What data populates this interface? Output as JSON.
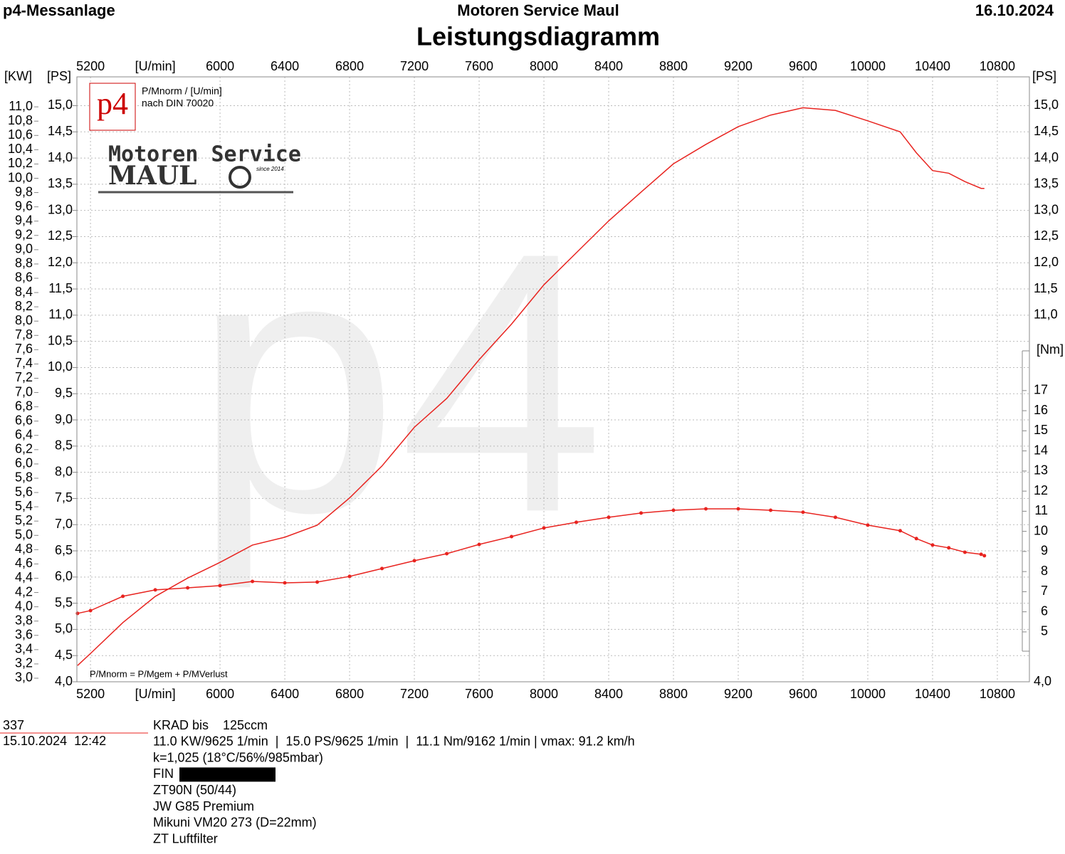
{
  "header": {
    "left": "p4-Messanlage",
    "center": "Motoren Service Maul",
    "right": "16.10.2024"
  },
  "chart_data": {
    "type": "line",
    "title": "Leistungsdiagramm",
    "x_unit": "[U/min]",
    "y_unit": "[PS]",
    "y2_unit": "[KW]",
    "y3_unit": "[Nm]",
    "legend_text": [
      "P/Mnorm / [U/min]",
      "nach DIN 70020"
    ],
    "note": "P/Mnorm = P/Mgem + P/MVerlust",
    "watermark": "p4",
    "logo": {
      "badge": "p4",
      "name": "Motoren Service",
      "brand": "MAUL",
      "since": "since 2014"
    },
    "grid": true,
    "xlim": [
      5116,
      10998
    ],
    "xticks": [
      5200,
      6000,
      6400,
      6800,
      7200,
      7600,
      8000,
      8400,
      8800,
      9200,
      9600,
      10000,
      10400,
      10800
    ],
    "ylim": [
      4.0,
      15.55
    ],
    "yticks": [
      {
        "value": 4,
        "label": "4,0"
      },
      {
        "value": 4.5,
        "label": "4,5"
      },
      {
        "value": 5,
        "label": "5,0"
      },
      {
        "value": 5.5,
        "label": "5,5"
      },
      {
        "value": 6,
        "label": "6,0"
      },
      {
        "value": 6.5,
        "label": "6,5"
      },
      {
        "value": 7,
        "label": "7,0"
      },
      {
        "value": 7.5,
        "label": "7,5"
      },
      {
        "value": 8,
        "label": "8,0"
      },
      {
        "value": 8.5,
        "label": "8,5"
      },
      {
        "value": 9,
        "label": "9,0"
      },
      {
        "value": 9.5,
        "label": "9,5"
      },
      {
        "value": 10,
        "label": "10,0"
      },
      {
        "value": 10.5,
        "label": "10,5"
      },
      {
        "value": 11,
        "label": "11,0"
      },
      {
        "value": 11.5,
        "label": "11,5"
      },
      {
        "value": 12,
        "label": "12,0"
      },
      {
        "value": 12.5,
        "label": "12,5"
      },
      {
        "value": 13,
        "label": "13,0"
      },
      {
        "value": 13.5,
        "label": "13,5"
      },
      {
        "value": 14,
        "label": "14,0"
      },
      {
        "value": 14.5,
        "label": "14,5"
      },
      {
        "value": 15,
        "label": "15,0"
      }
    ],
    "y2lim": [
      2.95,
      11.42
    ],
    "y2ticks": [
      {
        "value": 3,
        "label": "3,0"
      },
      {
        "value": 3.2,
        "label": "3,2"
      },
      {
        "value": 3.4,
        "label": "3,4"
      },
      {
        "value": 3.6,
        "label": "3,6"
      },
      {
        "value": 3.8,
        "label": "3,8"
      },
      {
        "value": 4,
        "label": "4,0"
      },
      {
        "value": 4.2,
        "label": "4,2"
      },
      {
        "value": 4.4,
        "label": "4,4"
      },
      {
        "value": 4.6,
        "label": "4,6"
      },
      {
        "value": 4.8,
        "label": "4,8"
      },
      {
        "value": 5,
        "label": "5,0"
      },
      {
        "value": 5.2,
        "label": "5,2"
      },
      {
        "value": 5.4,
        "label": "5,4"
      },
      {
        "value": 5.6,
        "label": "5,6"
      },
      {
        "value": 5.8,
        "label": "5,8"
      },
      {
        "value": 6,
        "label": "6,0"
      },
      {
        "value": 6.2,
        "label": "6,2"
      },
      {
        "value": 6.4,
        "label": "6,4"
      },
      {
        "value": 6.6,
        "label": "6,6"
      },
      {
        "value": 6.8,
        "label": "6,8"
      },
      {
        "value": 7,
        "label": "7,0"
      },
      {
        "value": 7.2,
        "label": "7,2"
      },
      {
        "value": 7.4,
        "label": "7,4"
      },
      {
        "value": 7.6,
        "label": "7,6"
      },
      {
        "value": 7.8,
        "label": "7,8"
      },
      {
        "value": 8,
        "label": "8,0"
      },
      {
        "value": 8.2,
        "label": "8,2"
      },
      {
        "value": 8.4,
        "label": "8,4"
      },
      {
        "value": 8.6,
        "label": "8,6"
      },
      {
        "value": 8.8,
        "label": "8,8"
      },
      {
        "value": 9,
        "label": "9,0"
      },
      {
        "value": 9.2,
        "label": "9,2"
      },
      {
        "value": 9.4,
        "label": "9,4"
      },
      {
        "value": 9.6,
        "label": "9,6"
      },
      {
        "value": 9.8,
        "label": "9,8"
      },
      {
        "value": 10,
        "label": "10,0"
      },
      {
        "value": 10.2,
        "label": "10,2"
      },
      {
        "value": 10.4,
        "label": "10,4"
      },
      {
        "value": 10.6,
        "label": "10,6"
      },
      {
        "value": 10.8,
        "label": "10,8"
      },
      {
        "value": 11,
        "label": "11,0"
      }
    ],
    "y3lim": [
      2.52,
      32.6
    ],
    "y3ticks": [
      5,
      6,
      7,
      8,
      9,
      10,
      11,
      12,
      13,
      14,
      15,
      16,
      17
    ],
    "x": [
      5120,
      5200,
      5400,
      5600,
      5800,
      6000,
      6200,
      6400,
      6600,
      6800,
      7000,
      7200,
      7400,
      7600,
      7800,
      8000,
      8200,
      8400,
      8600,
      8800,
      9000,
      9200,
      9400,
      9600,
      9800,
      10000,
      10200,
      10300,
      10400,
      10500,
      10600,
      10700,
      10720
    ],
    "series": [
      {
        "axis": "y",
        "color": "#e8231f",
        "markers": false,
        "values": [
          4.31,
          4.54,
          5.13,
          5.63,
          5.98,
          6.28,
          6.61,
          6.76,
          6.99,
          7.51,
          8.12,
          8.86,
          9.41,
          10.15,
          10.83,
          11.58,
          12.19,
          12.8,
          13.35,
          13.89,
          14.26,
          14.6,
          14.82,
          14.96,
          14.91,
          14.71,
          14.5,
          14.1,
          13.76,
          13.71,
          13.55,
          13.42,
          13.42
        ]
      },
      {
        "axis": "y3",
        "color": "#e8231f",
        "markers": true,
        "values": [
          5.92,
          6.06,
          6.77,
          7.09,
          7.19,
          7.3,
          7.51,
          7.44,
          7.48,
          7.76,
          8.15,
          8.54,
          8.89,
          9.35,
          9.74,
          10.17,
          10.45,
          10.7,
          10.91,
          11.05,
          11.12,
          11.12,
          11.05,
          10.95,
          10.7,
          10.31,
          10.03,
          9.64,
          9.32,
          9.18,
          8.96,
          8.86,
          8.79
        ]
      }
    ]
  },
  "footer": {
    "number": "337",
    "datetime": "15.10.2024  12:42",
    "lines": [
      "KRAD bis    125ccm",
      "11.0 KW/9625 1/min  |  15.0 PS/9625 1/min  |  11.1 Nm/9162 1/min | vmax: 91.2 km/h",
      "k=1,025 (18°C/56%/985mbar)",
      "FIN",
      "ZT90N (50/44)",
      "JW G85 Premium",
      "Mikuni VM20 273 (D=22mm)",
      "ZT Luftfilter"
    ]
  }
}
